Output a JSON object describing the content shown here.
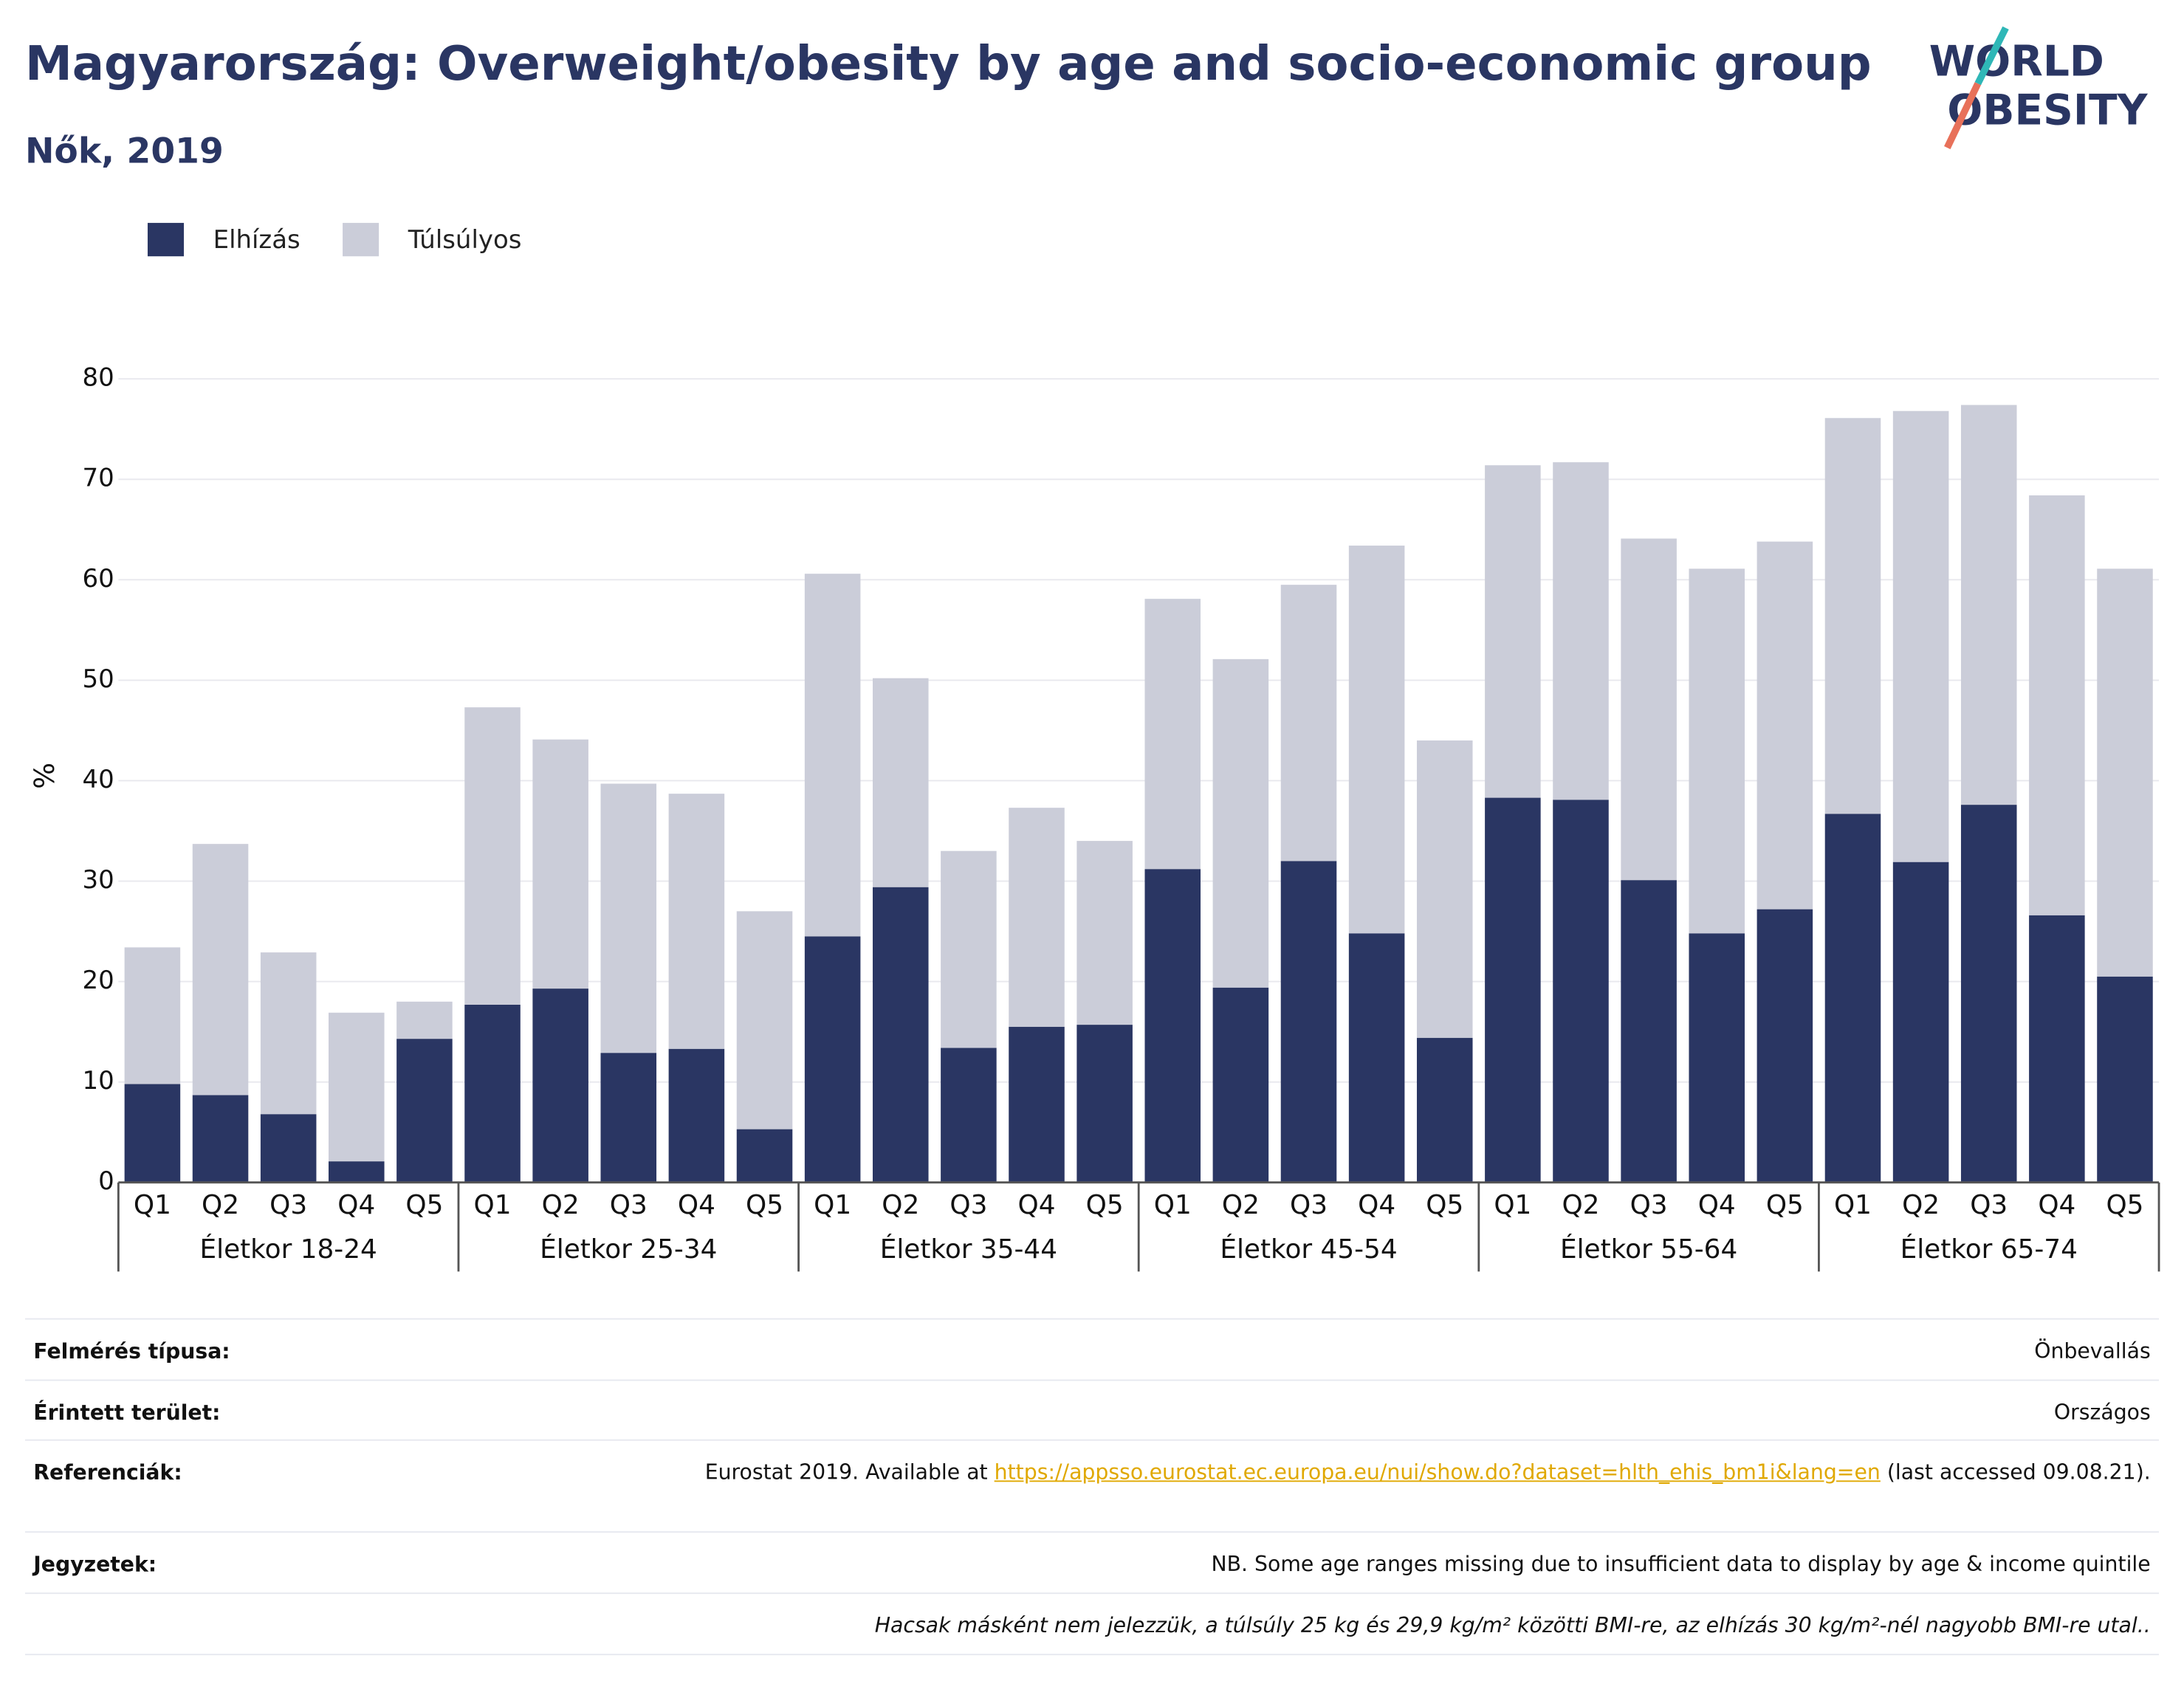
{
  "chart_data": {
    "type": "bar",
    "stacked": true,
    "title": "Magyarország: Overweight/obesity by age and socio-economic group",
    "subtitle": "Nők, 2019",
    "logo": [
      "WORLD",
      "OBESITY"
    ],
    "ylabel": "%",
    "groups": [
      {
        "name": "Életkor 18-24",
        "categories": [
          "Q1",
          "Q2",
          "Q3",
          "Q4",
          "Q5"
        ]
      },
      {
        "name": "Életkor 25-34",
        "categories": [
          "Q1",
          "Q2",
          "Q3",
          "Q4",
          "Q5"
        ]
      },
      {
        "name": "Életkor 35-44",
        "categories": [
          "Q1",
          "Q2",
          "Q3",
          "Q4",
          "Q5"
        ]
      },
      {
        "name": "Életkor 45-54",
        "categories": [
          "Q1",
          "Q2",
          "Q3",
          "Q4",
          "Q5"
        ]
      },
      {
        "name": "Életkor 55-64",
        "categories": [
          "Q1",
          "Q2",
          "Q3",
          "Q4",
          "Q5"
        ]
      },
      {
        "name": "Életkor 65-74",
        "categories": [
          "Q1",
          "Q2",
          "Q3",
          "Q4",
          "Q5"
        ]
      }
    ],
    "series": [
      {
        "name": "Elhízás",
        "color": "#2a3663",
        "values": [
          9.8,
          8.7,
          6.8,
          2.1,
          14.3,
          17.7,
          19.3,
          12.9,
          13.3,
          5.3,
          24.5,
          29.4,
          13.4,
          15.5,
          15.7,
          31.2,
          19.4,
          32.0,
          24.8,
          14.4,
          38.3,
          38.1,
          30.1,
          24.8,
          27.2,
          36.7,
          31.9,
          37.6,
          26.6,
          20.5
        ]
      },
      {
        "name": "Túlsúlyos",
        "color": "#cbcdd9",
        "values": [
          13.6,
          25.0,
          16.1,
          14.8,
          3.7,
          29.6,
          24.8,
          26.8,
          25.4,
          21.7,
          36.1,
          20.8,
          19.6,
          21.8,
          18.3,
          26.9,
          32.7,
          27.5,
          38.6,
          29.6,
          33.1,
          33.6,
          34.0,
          36.3,
          36.6,
          39.4,
          44.9,
          39.8,
          41.8,
          40.6
        ]
      }
    ],
    "ylim": [
      0,
      80
    ],
    "yticks": [
      0,
      10,
      20,
      30,
      40,
      50,
      60,
      70,
      80
    ],
    "grid": true,
    "legend": "top-left"
  },
  "footer": {
    "rows": [
      {
        "label": "Felmérés típusa:",
        "value": "Önbevallás"
      },
      {
        "label": "Érintett terület:",
        "value": "Országos"
      },
      {
        "label": "Referenciák:",
        "value": "Eurostat 2019. Available at",
        "link": "https://appsso.eurostat.ec.europa.eu/nui/show.do?dataset=hlth_ehis_bm1i&lang=en",
        "tail": "(last accessed 09.08.21)."
      },
      {
        "label": "Jegyzetek:",
        "value": "NB. Some age ranges missing due to insufficient data to display by age & income quintile"
      },
      {
        "value": "Hacsak másként nem jelezzük, a túlsúly 25 kg és 29,9 kg/m² közötti BMI-re, az elhízás 30 kg/m²-nél nagyobb BMI-re utal.."
      }
    ]
  }
}
